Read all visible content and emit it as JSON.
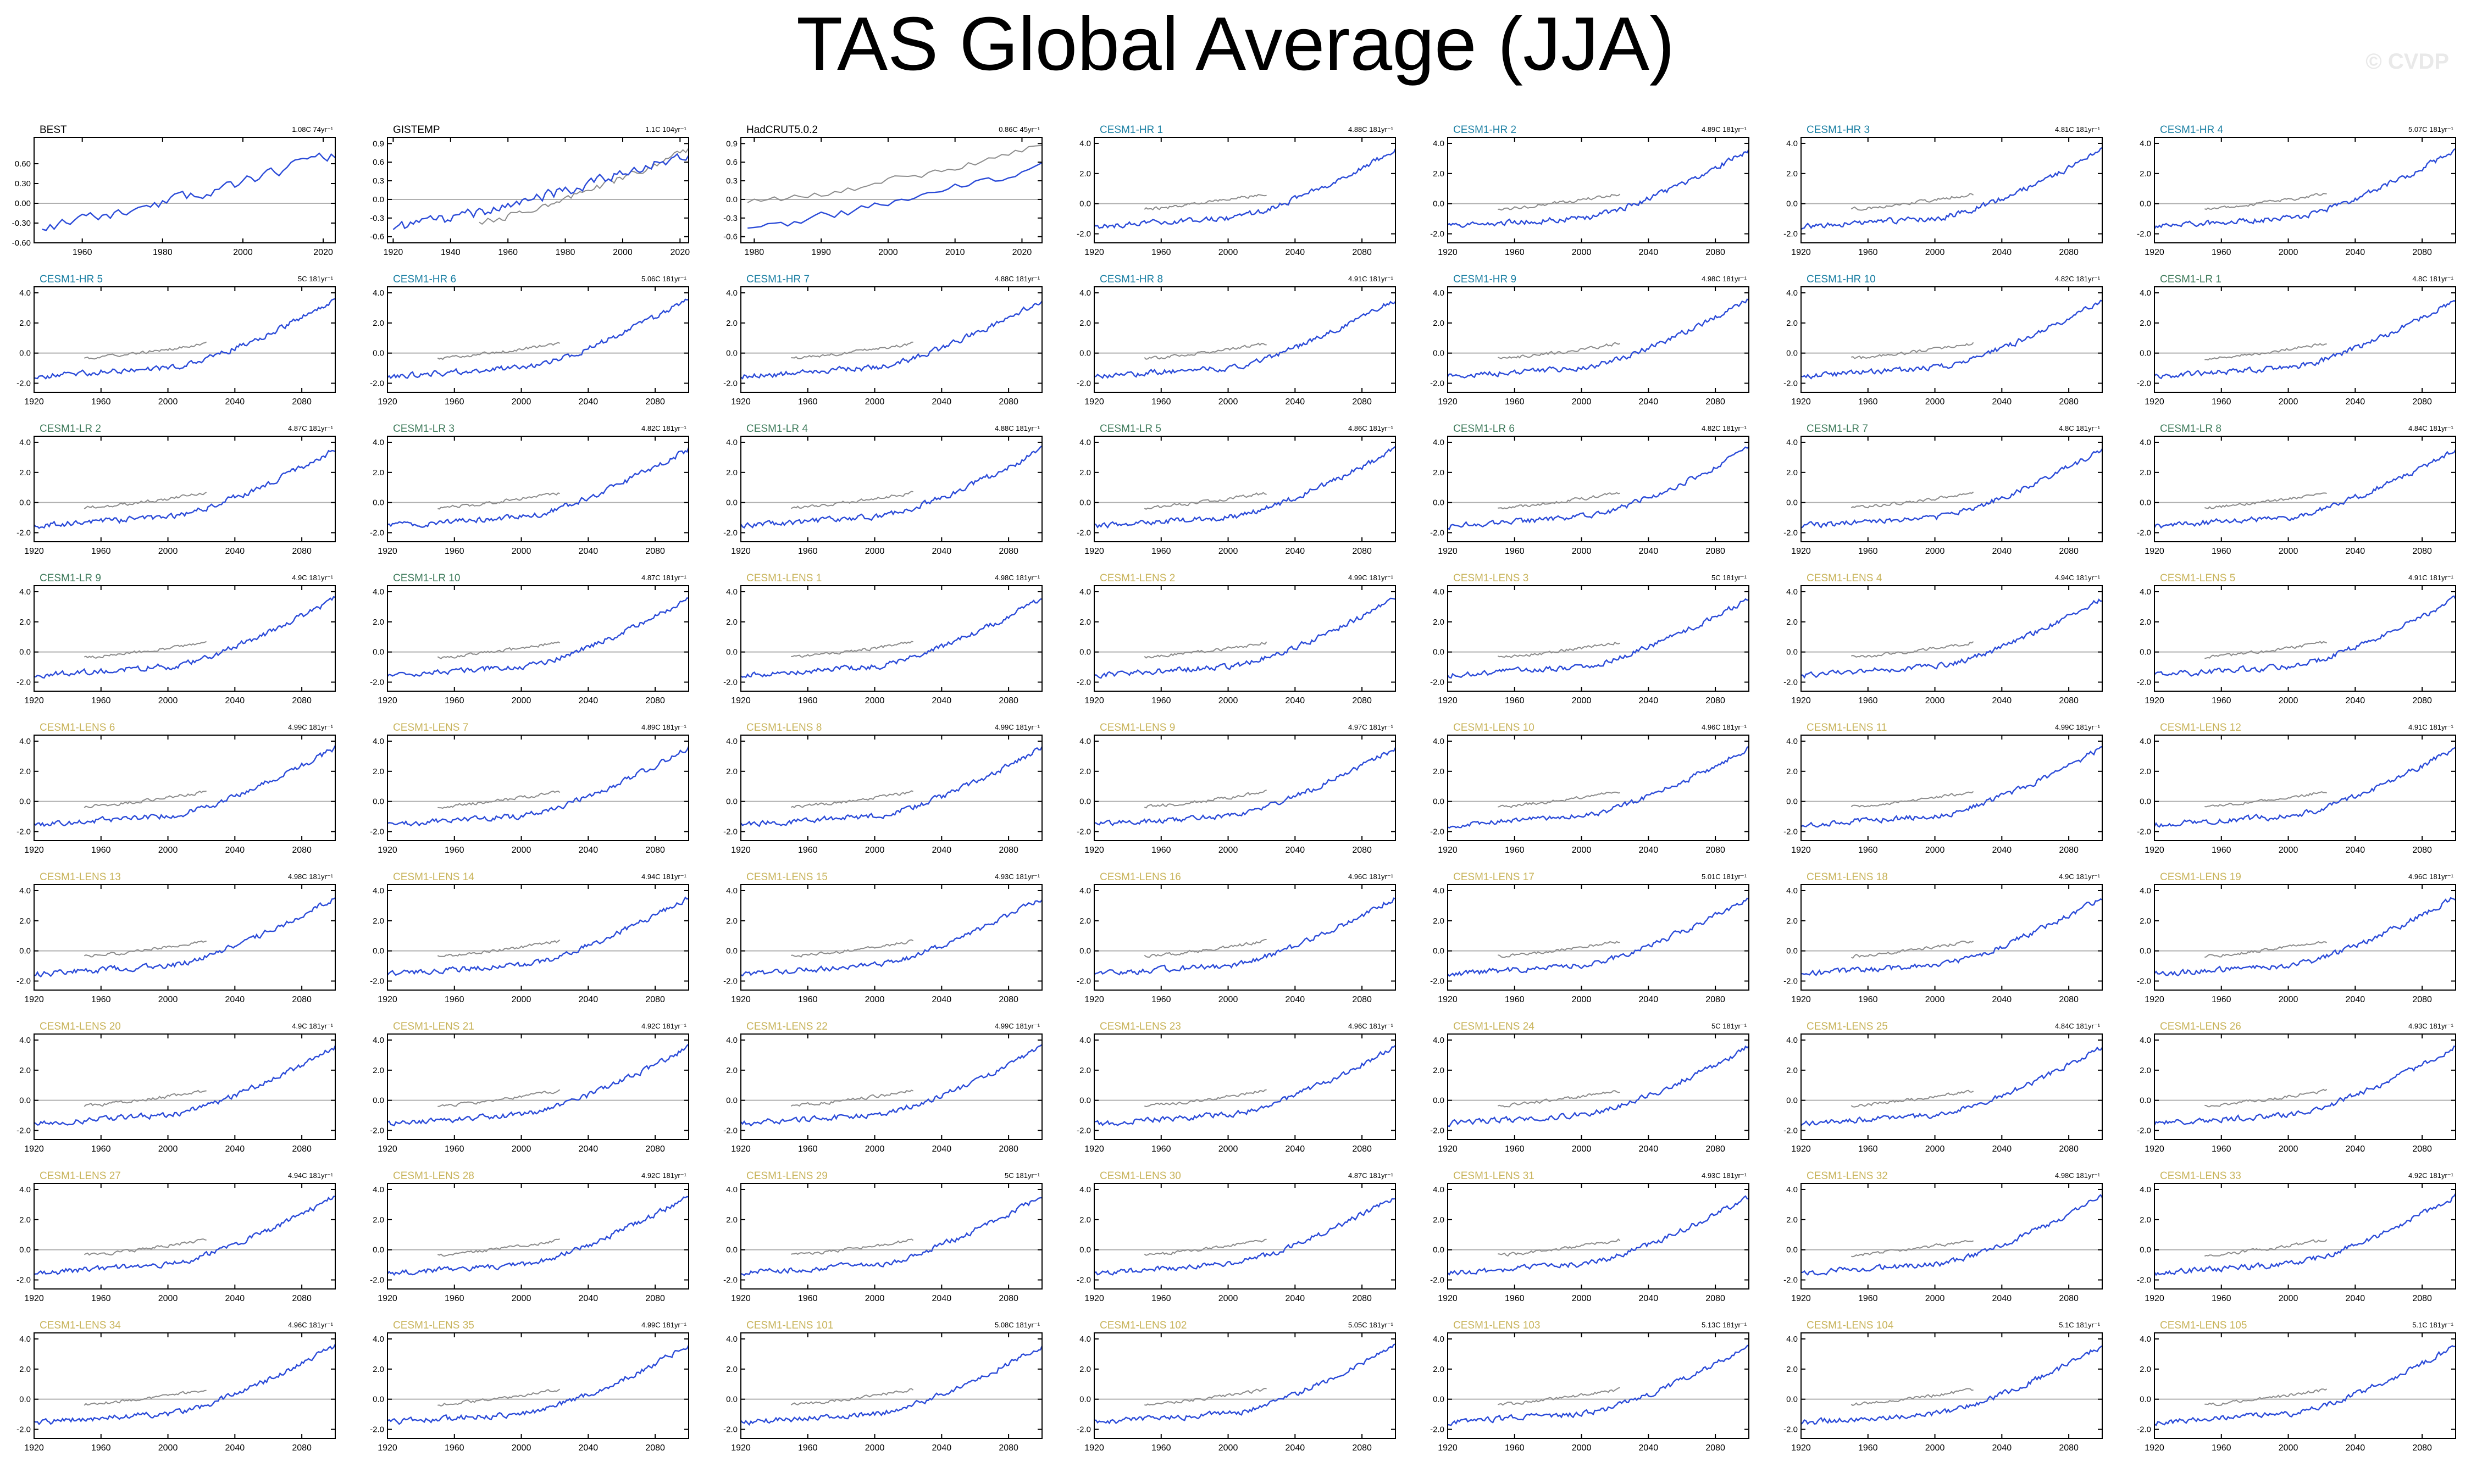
{
  "title": "TAS Global Average (JJA)",
  "watermark": "© CVDP",
  "colors": {
    "model_line": "#2b4bd8",
    "obs_line": "#8c8c8c",
    "obs_title": "#000000",
    "hr_title": "#1a7fa3",
    "lr_title": "#3d7a5a",
    "lens_title": "#c8b35a",
    "zero_line": "#b0b0b0",
    "frame": "#000000"
  },
  "chart_data": [
    {
      "type": "line",
      "title": "BEST",
      "group": "obs",
      "trend_label": "1.08C 74yr⁻¹",
      "x_range": [
        1948,
        2023
      ],
      "ylim": [
        -0.6,
        1.0
      ],
      "x_ticks": [
        1960,
        1980,
        2000,
        2020
      ],
      "x_tick_labels": [
        "1960",
        "1980",
        "2000",
        "2020"
      ],
      "y_ticks": [
        -0.6,
        -0.3,
        0.0,
        0.3,
        0.6
      ],
      "y_tick_labels": [
        "-0.60",
        "-0.30",
        "0.00",
        "0.30",
        "0.60"
      ],
      "series": [
        {
          "role": "main",
          "start": 1950,
          "end": 2023,
          "v0": -0.35,
          "v1": 0.75,
          "amp": 0.14,
          "seed": 11
        }
      ]
    },
    {
      "type": "line",
      "title": "GISTEMP",
      "group": "obs",
      "trend_label": "1.1C 104yr⁻¹",
      "x_range": [
        1918,
        2023
      ],
      "ylim": [
        -0.7,
        1.0
      ],
      "x_ticks": [
        1920,
        1940,
        1960,
        1980,
        2000,
        2020
      ],
      "x_tick_labels": [
        "1920",
        "1940",
        "1960",
        "1980",
        "2000",
        "2020"
      ],
      "y_ticks": [
        -0.6,
        -0.3,
        0.0,
        0.3,
        0.6,
        0.9
      ],
      "y_tick_labels": [
        "-0.6",
        "-0.3",
        "0.0",
        "0.3",
        "0.6",
        "0.9"
      ],
      "series": [
        {
          "role": "main",
          "start": 1920,
          "end": 2023,
          "v0": -0.45,
          "v1": 0.75,
          "amp": 0.15,
          "seed": 12
        },
        {
          "role": "ref",
          "start": 1950,
          "end": 2023,
          "v0": -0.35,
          "v1": 0.8,
          "amp": 0.1,
          "seed": 13
        }
      ]
    },
    {
      "type": "line",
      "title": "HadCRUT5.0.2",
      "group": "obs",
      "trend_label": "0.86C 45yr⁻¹",
      "x_range": [
        1978,
        2023
      ],
      "ylim": [
        -0.7,
        1.0
      ],
      "x_ticks": [
        1980,
        1990,
        2000,
        2010,
        2020
      ],
      "x_tick_labels": [
        "1980",
        "1990",
        "2000",
        "2010",
        "2020"
      ],
      "y_ticks": [
        -0.6,
        -0.3,
        0.0,
        0.3,
        0.6,
        0.9
      ],
      "y_tick_labels": [
        "-0.6",
        "-0.3",
        "0.0",
        "0.3",
        "0.6",
        "0.9"
      ],
      "series": [
        {
          "role": "main",
          "start": 1979,
          "end": 2023,
          "v0": -0.45,
          "v1": 0.55,
          "amp": 0.13,
          "seed": 14
        },
        {
          "role": "ref",
          "start": 1979,
          "end": 2023,
          "v0": -0.05,
          "v1": 0.85,
          "amp": 0.12,
          "seed": 15
        }
      ]
    },
    {
      "type": "line",
      "title": "CESM1-HR 1",
      "group": "hr",
      "trend_label": "4.88C 181yr⁻¹",
      "seed": 21
    },
    {
      "type": "line",
      "title": "CESM1-HR 2",
      "group": "hr",
      "trend_label": "4.89C 181yr⁻¹",
      "seed": 22
    },
    {
      "type": "line",
      "title": "CESM1-HR 3",
      "group": "hr",
      "trend_label": "4.81C 181yr⁻¹",
      "seed": 23
    },
    {
      "type": "line",
      "title": "CESM1-HR 4",
      "group": "hr",
      "trend_label": "5.07C 181yr⁻¹",
      "seed": 24
    },
    {
      "type": "line",
      "title": "CESM1-HR 5",
      "group": "hr",
      "trend_label": "5C 181yr⁻¹",
      "seed": 25
    },
    {
      "type": "line",
      "title": "CESM1-HR 6",
      "group": "hr",
      "trend_label": "5.06C 181yr⁻¹",
      "seed": 26
    },
    {
      "type": "line",
      "title": "CESM1-HR 7",
      "group": "hr",
      "trend_label": "4.88C 181yr⁻¹",
      "seed": 27
    },
    {
      "type": "line",
      "title": "CESM1-HR 8",
      "group": "hr",
      "trend_label": "4.91C 181yr⁻¹",
      "seed": 28
    },
    {
      "type": "line",
      "title": "CESM1-HR 9",
      "group": "hr",
      "trend_label": "4.98C 181yr⁻¹",
      "seed": 29
    },
    {
      "type": "line",
      "title": "CESM1-HR 10",
      "group": "hr",
      "trend_label": "4.82C 181yr⁻¹",
      "seed": 30
    },
    {
      "type": "line",
      "title": "CESM1-LR 1",
      "group": "lr",
      "trend_label": "4.8C 181yr⁻¹",
      "seed": 31
    },
    {
      "type": "line",
      "title": "CESM1-LR 2",
      "group": "lr",
      "trend_label": "4.87C 181yr⁻¹",
      "seed": 32
    },
    {
      "type": "line",
      "title": "CESM1-LR 3",
      "group": "lr",
      "trend_label": "4.82C 181yr⁻¹",
      "seed": 33
    },
    {
      "type": "line",
      "title": "CESM1-LR 4",
      "group": "lr",
      "trend_label": "4.88C 181yr⁻¹",
      "seed": 34
    },
    {
      "type": "line",
      "title": "CESM1-LR 5",
      "group": "lr",
      "trend_label": "4.86C 181yr⁻¹",
      "seed": 35
    },
    {
      "type": "line",
      "title": "CESM1-LR 6",
      "group": "lr",
      "trend_label": "4.82C 181yr⁻¹",
      "seed": 36
    },
    {
      "type": "line",
      "title": "CESM1-LR 7",
      "group": "lr",
      "trend_label": "4.8C 181yr⁻¹",
      "seed": 37
    },
    {
      "type": "line",
      "title": "CESM1-LR 8",
      "group": "lr",
      "trend_label": "4.84C 181yr⁻¹",
      "seed": 38
    },
    {
      "type": "line",
      "title": "CESM1-LR 9",
      "group": "lr",
      "trend_label": "4.9C 181yr⁻¹",
      "seed": 39
    },
    {
      "type": "line",
      "title": "CESM1-LR 10",
      "group": "lr",
      "trend_label": "4.87C 181yr⁻¹",
      "seed": 40
    },
    {
      "type": "line",
      "title": "CESM1-LENS 1",
      "group": "lens",
      "trend_label": "4.98C 181yr⁻¹",
      "seed": 41
    },
    {
      "type": "line",
      "title": "CESM1-LENS 2",
      "group": "lens",
      "trend_label": "4.99C 181yr⁻¹",
      "seed": 42
    },
    {
      "type": "line",
      "title": "CESM1-LENS 3",
      "group": "lens",
      "trend_label": "5C 181yr⁻¹",
      "seed": 43
    },
    {
      "type": "line",
      "title": "CESM1-LENS 4",
      "group": "lens",
      "trend_label": "4.94C 181yr⁻¹",
      "seed": 44
    },
    {
      "type": "line",
      "title": "CESM1-LENS 5",
      "group": "lens",
      "trend_label": "4.91C 181yr⁻¹",
      "seed": 45
    },
    {
      "type": "line",
      "title": "CESM1-LENS 6",
      "group": "lens",
      "trend_label": "4.99C 181yr⁻¹",
      "seed": 46
    },
    {
      "type": "line",
      "title": "CESM1-LENS 7",
      "group": "lens",
      "trend_label": "4.89C 181yr⁻¹",
      "seed": 47
    },
    {
      "type": "line",
      "title": "CESM1-LENS 8",
      "group": "lens",
      "trend_label": "4.99C 181yr⁻¹",
      "seed": 48
    },
    {
      "type": "line",
      "title": "CESM1-LENS 9",
      "group": "lens",
      "trend_label": "4.97C 181yr⁻¹",
      "seed": 49
    },
    {
      "type": "line",
      "title": "CESM1-LENS 10",
      "group": "lens",
      "trend_label": "4.96C 181yr⁻¹",
      "seed": 50
    },
    {
      "type": "line",
      "title": "CESM1-LENS 11",
      "group": "lens",
      "trend_label": "4.99C 181yr⁻¹",
      "seed": 51
    },
    {
      "type": "line",
      "title": "CESM1-LENS 12",
      "group": "lens",
      "trend_label": "4.91C 181yr⁻¹",
      "seed": 52
    },
    {
      "type": "line",
      "title": "CESM1-LENS 13",
      "group": "lens",
      "trend_label": "4.98C 181yr⁻¹",
      "seed": 53
    },
    {
      "type": "line",
      "title": "CESM1-LENS 14",
      "group": "lens",
      "trend_label": "4.94C 181yr⁻¹",
      "seed": 54
    },
    {
      "type": "line",
      "title": "CESM1-LENS 15",
      "group": "lens",
      "trend_label": "4.93C 181yr⁻¹",
      "seed": 55
    },
    {
      "type": "line",
      "title": "CESM1-LENS 16",
      "group": "lens",
      "trend_label": "4.96C 181yr⁻¹",
      "seed": 56
    },
    {
      "type": "line",
      "title": "CESM1-LENS 17",
      "group": "lens",
      "trend_label": "5.01C 181yr⁻¹",
      "seed": 57
    },
    {
      "type": "line",
      "title": "CESM1-LENS 18",
      "group": "lens",
      "trend_label": "4.9C 181yr⁻¹",
      "seed": 58
    },
    {
      "type": "line",
      "title": "CESM1-LENS 19",
      "group": "lens",
      "trend_label": "4.96C 181yr⁻¹",
      "seed": 59
    },
    {
      "type": "line",
      "title": "CESM1-LENS 20",
      "group": "lens",
      "trend_label": "4.9C 181yr⁻¹",
      "seed": 60
    },
    {
      "type": "line",
      "title": "CESM1-LENS 21",
      "group": "lens",
      "trend_label": "4.92C 181yr⁻¹",
      "seed": 61
    },
    {
      "type": "line",
      "title": "CESM1-LENS 22",
      "group": "lens",
      "trend_label": "4.99C 181yr⁻¹",
      "seed": 62
    },
    {
      "type": "line",
      "title": "CESM1-LENS 23",
      "group": "lens",
      "trend_label": "4.96C 181yr⁻¹",
      "seed": 63
    },
    {
      "type": "line",
      "title": "CESM1-LENS 24",
      "group": "lens",
      "trend_label": "5C 181yr⁻¹",
      "seed": 64
    },
    {
      "type": "line",
      "title": "CESM1-LENS 25",
      "group": "lens",
      "trend_label": "4.84C 181yr⁻¹",
      "seed": 65
    },
    {
      "type": "line",
      "title": "CESM1-LENS 26",
      "group": "lens",
      "trend_label": "4.93C 181yr⁻¹",
      "seed": 66
    },
    {
      "type": "line",
      "title": "CESM1-LENS 27",
      "group": "lens",
      "trend_label": "4.94C 181yr⁻¹",
      "seed": 67
    },
    {
      "type": "line",
      "title": "CESM1-LENS 28",
      "group": "lens",
      "trend_label": "4.92C 181yr⁻¹",
      "seed": 68
    },
    {
      "type": "line",
      "title": "CESM1-LENS 29",
      "group": "lens",
      "trend_label": "5C 181yr⁻¹",
      "seed": 69
    },
    {
      "type": "line",
      "title": "CESM1-LENS 30",
      "group": "lens",
      "trend_label": "4.87C 181yr⁻¹",
      "seed": 70
    },
    {
      "type": "line",
      "title": "CESM1-LENS 31",
      "group": "lens",
      "trend_label": "4.93C 181yr⁻¹",
      "seed": 71
    },
    {
      "type": "line",
      "title": "CESM1-LENS 32",
      "group": "lens",
      "trend_label": "4.98C 181yr⁻¹",
      "seed": 72
    },
    {
      "type": "line",
      "title": "CESM1-LENS 33",
      "group": "lens",
      "trend_label": "4.92C 181yr⁻¹",
      "seed": 73
    },
    {
      "type": "line",
      "title": "CESM1-LENS 34",
      "group": "lens",
      "trend_label": "4.96C 181yr⁻¹",
      "seed": 74
    },
    {
      "type": "line",
      "title": "CESM1-LENS 35",
      "group": "lens",
      "trend_label": "4.99C 181yr⁻¹",
      "seed": 75
    },
    {
      "type": "line",
      "title": "CESM1-LENS 101",
      "group": "lens",
      "trend_label": "5.08C 181yr⁻¹",
      "seed": 76
    },
    {
      "type": "line",
      "title": "CESM1-LENS 102",
      "group": "lens",
      "trend_label": "5.05C 181yr⁻¹",
      "seed": 77
    },
    {
      "type": "line",
      "title": "CESM1-LENS 103",
      "group": "lens",
      "trend_label": "5.13C 181yr⁻¹",
      "seed": 78
    },
    {
      "type": "line",
      "title": "CESM1-LENS 104",
      "group": "lens",
      "trend_label": "5.1C 181yr⁻¹",
      "seed": 79
    },
    {
      "type": "line",
      "title": "CESM1-LENS 105",
      "group": "lens",
      "trend_label": "5.1C 181yr⁻¹",
      "seed": 80
    }
  ],
  "model_defaults": {
    "x_range": [
      1920,
      2100
    ],
    "ylim": [
      -2.6,
      4.4
    ],
    "x_ticks": [
      1920,
      1960,
      2000,
      2040,
      2080
    ],
    "x_tick_labels": [
      "1920",
      "1960",
      "2000",
      "2040",
      "2080"
    ],
    "y_ticks": [
      -2.0,
      0.0,
      2.0,
      4.0
    ],
    "y_tick_labels": [
      "-2.0",
      "0.0",
      "2.0",
      "4.0"
    ],
    "main_series": {
      "start": 1920,
      "end": 2100,
      "v0": -1.55,
      "v_mid": -0.95,
      "v1": 3.55
    },
    "ref_series": {
      "start": 1950,
      "end": 2023,
      "v0": -0.35,
      "v1": 0.65
    }
  }
}
